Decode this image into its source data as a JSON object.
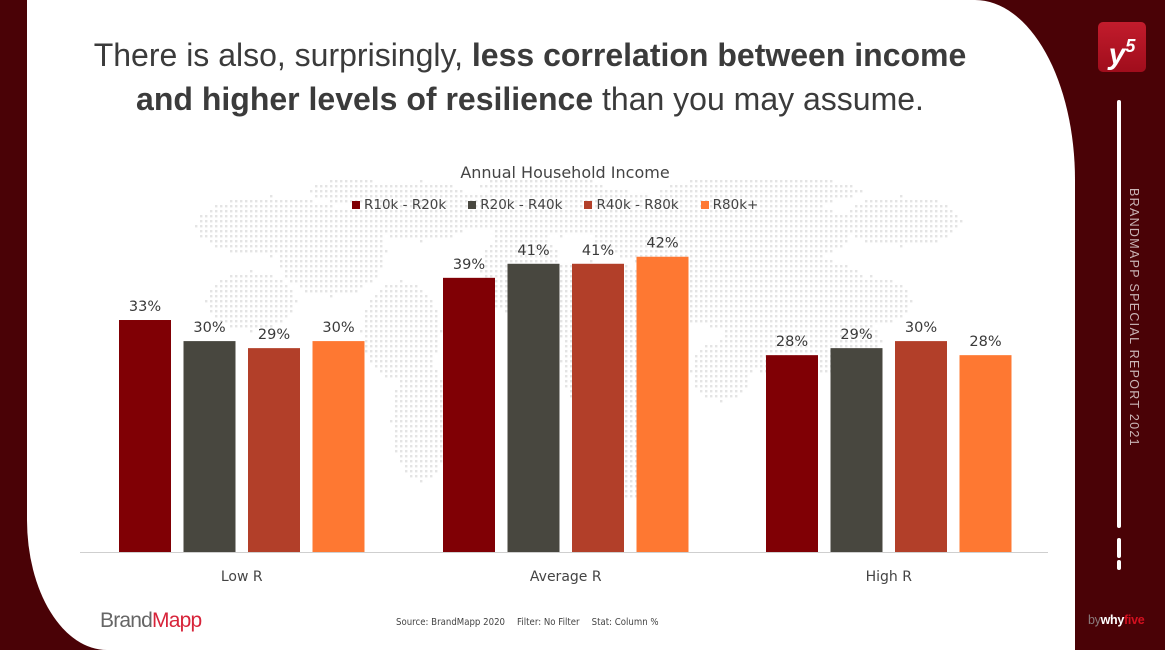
{
  "headline": {
    "part1": "There is also, surprisingly, ",
    "bold1": "less correlation between income",
    "bold2": "and higher levels of resilience",
    "part2": " than you may assume."
  },
  "logo": {
    "text": "y",
    "superscript": "5"
  },
  "sidebar": {
    "vertical_text": "BRANDMAPP SPECIAL REPORT 2021"
  },
  "footer": {
    "brand_part1": "Brand",
    "brand_part2": "Mapp",
    "source": "Source: BrandMapp 2020",
    "filter": "Filter: No Filter",
    "stat": "Stat: Column %",
    "bywhyfive": {
      "by": "by",
      "why": "why",
      "five": "five"
    }
  },
  "colors": {
    "background": "#4a0206",
    "brand_red": "#d7243a"
  },
  "chart_data": {
    "type": "bar",
    "title": "Annual Household Income",
    "xlabel": "",
    "ylabel": "",
    "categories": [
      "Low R",
      "Average R",
      "High R"
    ],
    "series": [
      {
        "name": "R10k - R20k",
        "color": "#800005",
        "values": [
          33,
          39,
          28
        ]
      },
      {
        "name": "R20k - R40k",
        "color": "#48473f",
        "values": [
          30,
          41,
          29
        ]
      },
      {
        "name": "R40k - R80k",
        "color": "#b23f29",
        "values": [
          29,
          41,
          30
        ]
      },
      {
        "name": "R80k+",
        "color": "#fe7832",
        "values": [
          30,
          42,
          28
        ]
      }
    ],
    "value_format": "{v}%",
    "ylim": [
      0,
      45
    ],
    "grid": false,
    "legend": "top-center"
  }
}
